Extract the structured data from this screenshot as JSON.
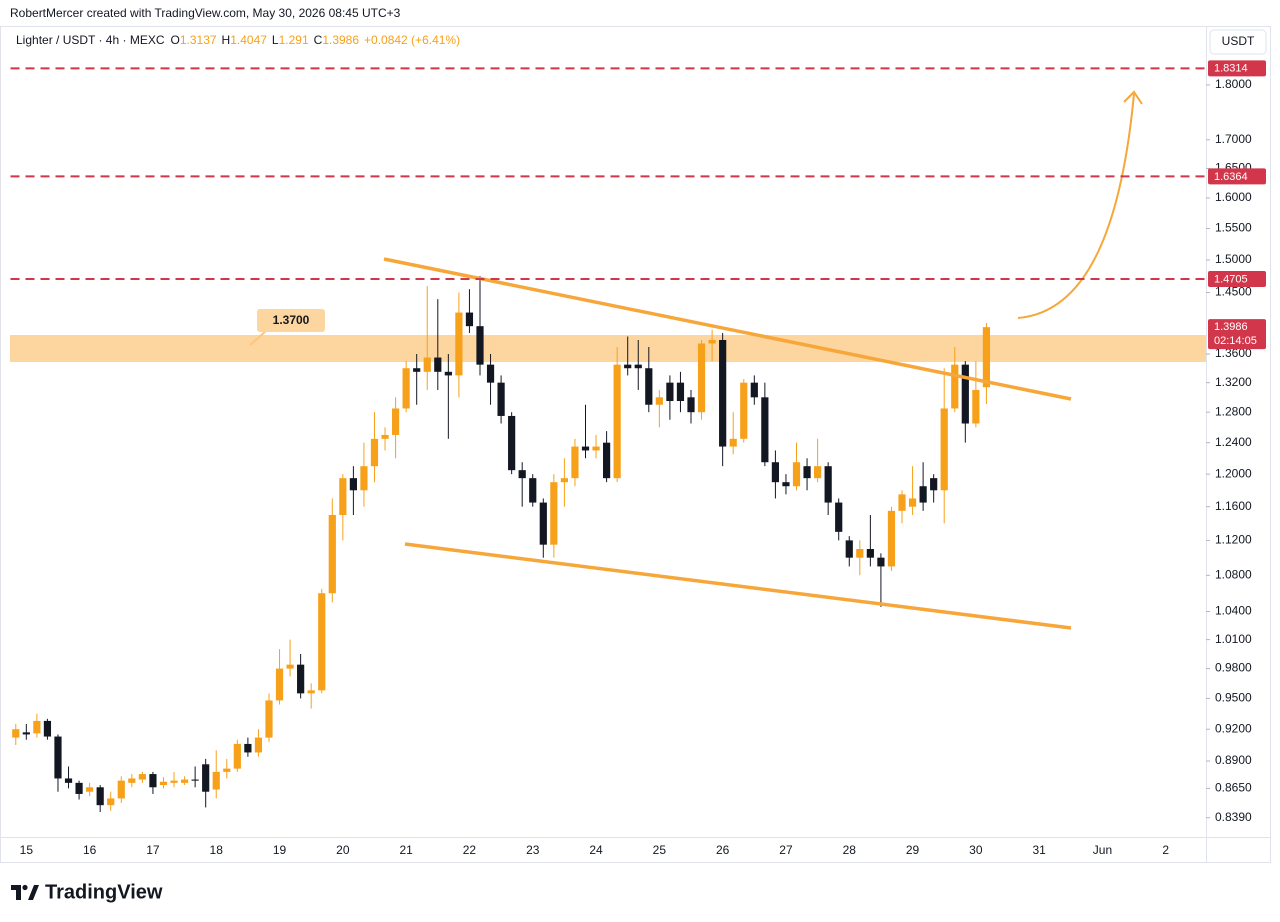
{
  "credit": "RobertMercer created with TradingView.com, May 30, 2026 08:45 UTC+3",
  "currency": "USDT",
  "logo": "TradingView",
  "chart_data": {
    "type": "candlestick",
    "symbol": "Lighter / USDT · 4h · MEXC",
    "ohlc_letters": [
      "O",
      "H",
      "L",
      "C"
    ],
    "change": "+0.0842 (+6.41%)",
    "countdown": "02:14:05",
    "zone_label": "1.3700",
    "log_scale": true,
    "grid": false,
    "up_color": "#f7a11a",
    "down_color": "#131722",
    "level_color": "#d1364a",
    "levels": [
      1.8314,
      1.6364,
      1.4705
    ],
    "categories": [
      null,
      "15",
      null,
      null,
      null,
      null,
      null,
      "16",
      null,
      null,
      null,
      null,
      null,
      "17",
      null,
      null,
      null,
      null,
      null,
      "18",
      null,
      null,
      null,
      null,
      null,
      "19",
      null,
      null,
      null,
      null,
      null,
      "20",
      null,
      null,
      null,
      null,
      null,
      "21",
      null,
      null,
      null,
      null,
      null,
      "22",
      null,
      null,
      null,
      null,
      null,
      "23",
      null,
      null,
      null,
      null,
      null,
      "24",
      null,
      null,
      null,
      null,
      null,
      "25",
      null,
      null,
      null,
      null,
      null,
      "26",
      null,
      null,
      null,
      null,
      null,
      "27",
      null,
      null,
      null,
      null,
      null,
      "28",
      null,
      null,
      null,
      null,
      null,
      "29",
      null,
      null,
      null,
      null,
      null,
      "30",
      null,
      null,
      null,
      null,
      null,
      "31",
      null,
      null,
      null,
      null,
      null,
      "Jun",
      null,
      null,
      null,
      null,
      null,
      "2",
      null,
      null,
      null
    ],
    "open": [
      0.912,
      0.917,
      0.916,
      0.928,
      0.913,
      0.874,
      0.87,
      0.862,
      0.866,
      0.85,
      0.856,
      0.87,
      0.873,
      0.878,
      0.868,
      0.87,
      0.87,
      0.873,
      0.887,
      0.864,
      0.88,
      0.883,
      0.906,
      0.898,
      0.912,
      0.948,
      0.98,
      0.984,
      0.955,
      0.958,
      1.06,
      1.15,
      1.195,
      1.18,
      1.21,
      1.245,
      1.25,
      1.285,
      1.34,
      1.335,
      1.355,
      1.335,
      1.33,
      1.42,
      1.4,
      1.345,
      1.32,
      1.275,
      1.205,
      1.195,
      1.165,
      1.115,
      1.19,
      1.195,
      1.235,
      1.23,
      1.24,
      1.195,
      1.345,
      1.345,
      1.34,
      1.29,
      1.32,
      1.32,
      1.3,
      1.28,
      1.375,
      1.38,
      1.235,
      1.245,
      1.32,
      1.3,
      1.215,
      1.19,
      1.185,
      1.21,
      1.195,
      1.21,
      1.165,
      1.12,
      1.1,
      1.11,
      1.1,
      1.09,
      1.155,
      1.16,
      1.185,
      1.195,
      1.18,
      1.285,
      1.345,
      1.265,
      1.3137,
      null,
      null,
      null,
      null,
      null,
      null,
      null,
      null,
      null,
      null,
      null,
      null,
      null,
      null,
      null,
      null,
      null,
      null,
      null,
      null
    ],
    "high": [
      0.925,
      0.925,
      0.935,
      0.93,
      0.915,
      0.885,
      0.872,
      0.87,
      0.868,
      0.862,
      0.876,
      0.878,
      0.88,
      0.88,
      0.875,
      0.88,
      0.876,
      0.885,
      0.892,
      0.9,
      0.892,
      0.91,
      0.912,
      0.92,
      0.955,
      1.0,
      1.01,
      0.995,
      0.965,
      1.065,
      1.17,
      1.2,
      1.21,
      1.24,
      1.28,
      1.26,
      1.3,
      1.35,
      1.36,
      1.46,
      1.44,
      1.36,
      1.45,
      1.455,
      1.475,
      1.36,
      1.33,
      1.28,
      1.215,
      1.2,
      1.17,
      1.2,
      1.22,
      1.245,
      1.29,
      1.25,
      1.255,
      1.37,
      1.385,
      1.38,
      1.37,
      1.31,
      1.33,
      1.335,
      1.31,
      1.38,
      1.395,
      1.39,
      1.28,
      1.325,
      1.33,
      1.32,
      1.23,
      1.2,
      1.24,
      1.22,
      1.245,
      1.215,
      1.17,
      1.125,
      1.12,
      1.15,
      1.105,
      1.16,
      1.18,
      1.21,
      1.215,
      1.2,
      1.34,
      1.37,
      1.35,
      1.35,
      1.4047,
      null,
      null,
      null,
      null,
      null,
      null,
      null,
      null,
      null,
      null,
      null,
      null,
      null,
      null,
      null,
      null,
      null,
      null,
      null,
      null
    ],
    "low": [
      0.905,
      0.91,
      0.912,
      0.91,
      0.862,
      0.865,
      0.855,
      0.858,
      0.844,
      0.845,
      0.852,
      0.866,
      0.87,
      0.86,
      0.865,
      0.866,
      0.868,
      0.866,
      0.848,
      0.856,
      0.874,
      0.88,
      0.894,
      0.894,
      0.908,
      0.944,
      0.972,
      0.95,
      0.94,
      0.955,
      1.05,
      1.12,
      1.15,
      1.16,
      1.19,
      1.23,
      1.22,
      1.28,
      1.29,
      1.31,
      1.31,
      1.245,
      1.3,
      1.39,
      1.33,
      1.29,
      1.265,
      1.2,
      1.16,
      1.16,
      1.1,
      1.1,
      1.16,
      1.185,
      1.22,
      1.22,
      1.19,
      1.19,
      1.33,
      1.31,
      1.28,
      1.26,
      1.27,
      1.28,
      1.265,
      1.27,
      1.35,
      1.21,
      1.225,
      1.24,
      1.29,
      1.21,
      1.17,
      1.175,
      1.18,
      1.18,
      1.19,
      1.15,
      1.12,
      1.09,
      1.08,
      1.09,
      1.045,
      1.085,
      1.14,
      1.15,
      1.155,
      1.165,
      1.14,
      1.28,
      1.24,
      1.26,
      1.291,
      null,
      null,
      null,
      null,
      null,
      null,
      null,
      null,
      null,
      null,
      null,
      null,
      null,
      null,
      null,
      null,
      null,
      null,
      null,
      null
    ],
    "close": [
      0.92,
      0.915,
      0.928,
      0.913,
      0.874,
      0.87,
      0.86,
      0.866,
      0.85,
      0.856,
      0.872,
      0.874,
      0.878,
      0.866,
      0.871,
      0.872,
      0.873,
      0.872,
      0.862,
      0.88,
      0.883,
      0.906,
      0.898,
      0.912,
      0.948,
      0.98,
      0.984,
      0.955,
      0.958,
      1.06,
      1.15,
      1.195,
      1.18,
      1.21,
      1.245,
      1.25,
      1.285,
      1.34,
      1.335,
      1.355,
      1.335,
      1.33,
      1.42,
      1.4,
      1.345,
      1.32,
      1.275,
      1.205,
      1.195,
      1.165,
      1.115,
      1.19,
      1.195,
      1.235,
      1.23,
      1.235,
      1.195,
      1.345,
      1.34,
      1.34,
      1.29,
      1.3,
      1.295,
      1.295,
      1.28,
      1.375,
      1.38,
      1.235,
      1.245,
      1.32,
      1.3,
      1.215,
      1.19,
      1.185,
      1.215,
      1.195,
      1.21,
      1.165,
      1.13,
      1.1,
      1.11,
      1.1,
      1.09,
      1.155,
      1.175,
      1.17,
      1.165,
      1.18,
      1.285,
      1.345,
      1.265,
      1.31,
      1.3986,
      null,
      null,
      null,
      null,
      null,
      null,
      null,
      null,
      null,
      null,
      null,
      null,
      null,
      null,
      null,
      null,
      null,
      null,
      null,
      null
    ],
    "ylim": [
      0.824,
      1.906
    ],
    "yticks": [
      {
        "value": 0.839,
        "label": "0.8390"
      },
      {
        "value": 0.865,
        "label": "0.8650"
      },
      {
        "value": 0.89,
        "label": "0.8900"
      },
      {
        "value": 0.92,
        "label": "0.9200"
      },
      {
        "value": 0.95,
        "label": "0.9500"
      },
      {
        "value": 0.98,
        "label": "0.9800"
      },
      {
        "value": 1.01,
        "label": "1.0100"
      },
      {
        "value": 1.04,
        "label": "1.0400"
      },
      {
        "value": 1.08,
        "label": "1.0800"
      },
      {
        "value": 1.12,
        "label": "1.1200"
      },
      {
        "value": 1.16,
        "label": "1.1600"
      },
      {
        "value": 1.2,
        "label": "1.2000"
      },
      {
        "value": 1.24,
        "label": "1.2400"
      },
      {
        "value": 1.28,
        "label": "1.2800"
      },
      {
        "value": 1.32,
        "label": "1.3200"
      },
      {
        "value": 1.36,
        "label": "1.3600"
      },
      {
        "value": 1.45,
        "label": "1.4500"
      },
      {
        "value": 1.5,
        "label": "1.5000"
      },
      {
        "value": 1.55,
        "label": "1.5500"
      },
      {
        "value": 1.6,
        "label": "1.6000"
      },
      {
        "value": 1.65,
        "label": "1.6500"
      },
      {
        "value": 1.7,
        "label": "1.7000"
      },
      {
        "value": 1.8,
        "label": "1.8000"
      }
    ]
  }
}
